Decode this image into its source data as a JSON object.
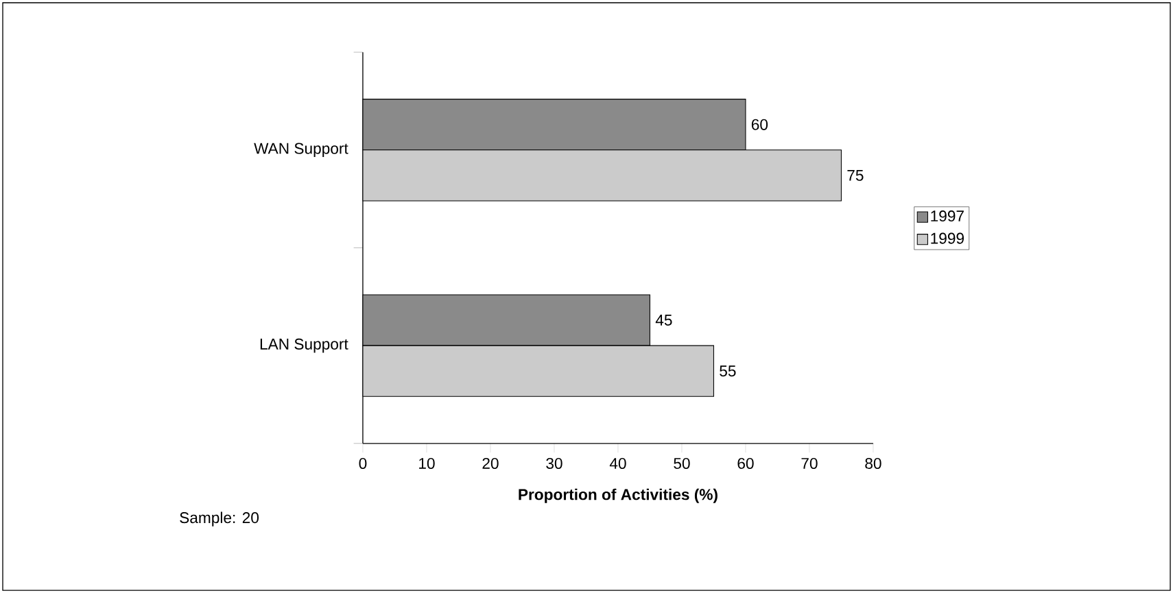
{
  "chart_data": {
    "type": "bar",
    "orientation": "horizontal",
    "categories": [
      "WAN Support",
      "LAN Support"
    ],
    "series": [
      {
        "name": "1997",
        "color": "#8a8a8a",
        "values": [
          60,
          45
        ]
      },
      {
        "name": "1999",
        "color": "#cbcbcb",
        "values": [
          75,
          55
        ]
      }
    ],
    "xlabel": "Proportion of Activities (%)",
    "xlim": [
      0,
      80
    ],
    "xticks": [
      0,
      10,
      20,
      30,
      40,
      50,
      60,
      70,
      80
    ],
    "data_labels": true,
    "legend": "right",
    "grid": false,
    "annotations": [
      "Sample: 20"
    ]
  }
}
